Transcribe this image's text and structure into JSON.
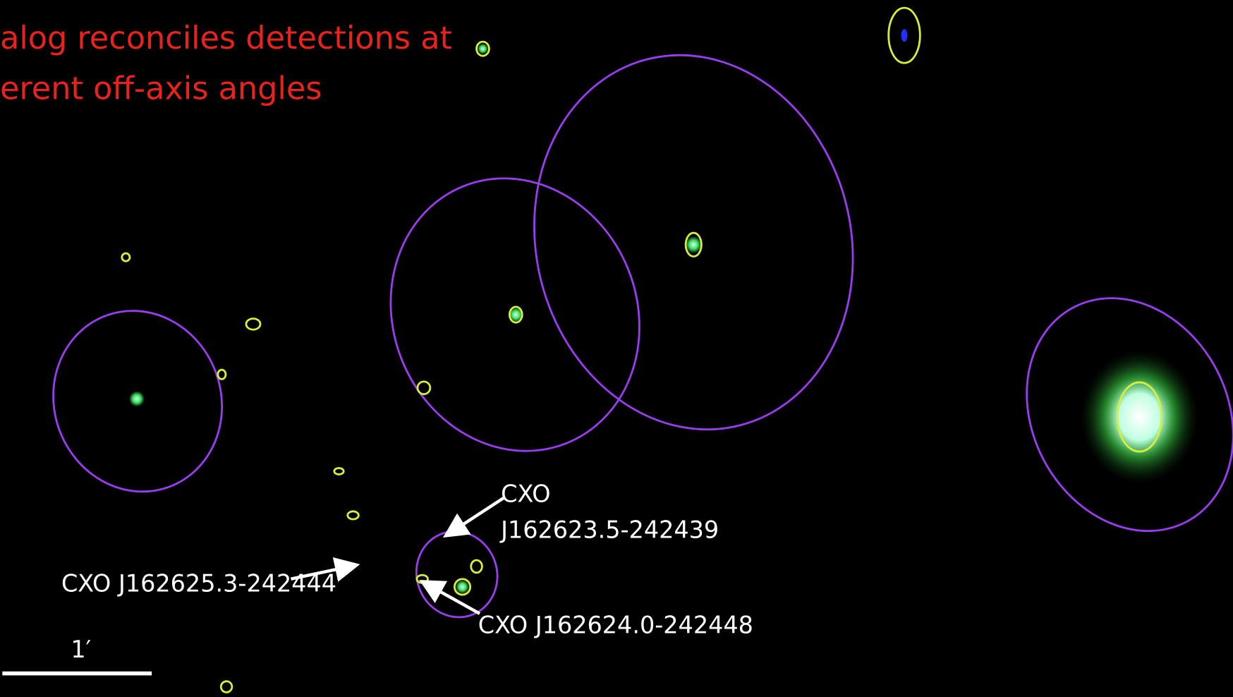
{
  "title": {
    "line1": "alog reconciles detections at",
    "line2": "erent off-axis angles"
  },
  "labels": {
    "source1_line1": "CXO",
    "source1_line2": "J162623.5-242439",
    "source2": "CXO J162625.3-242444",
    "source3": "CXO J162624.0-242448"
  },
  "scale_bar": {
    "label": "1′"
  }
}
